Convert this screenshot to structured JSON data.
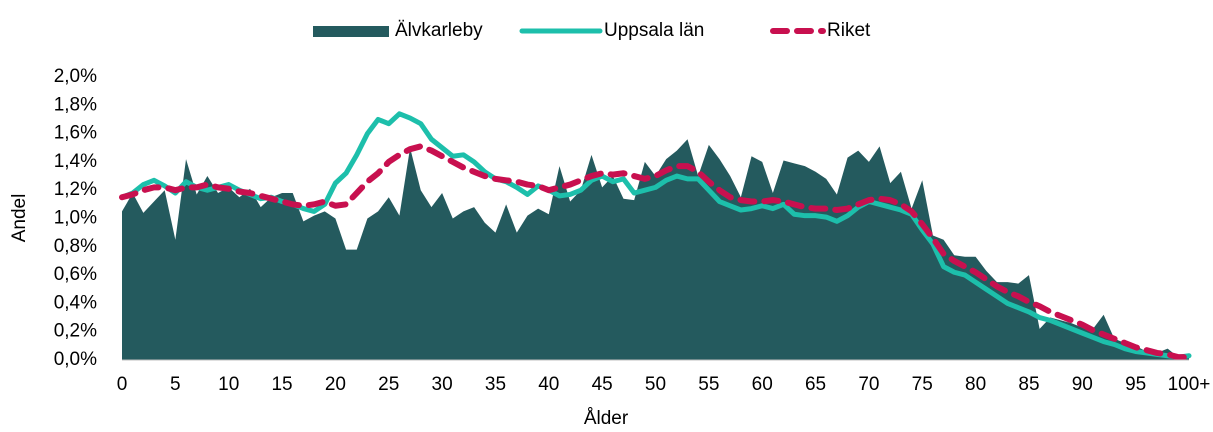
{
  "chart_data": {
    "type": "line",
    "categories": [
      "0",
      null,
      null,
      null,
      null,
      "5",
      null,
      null,
      null,
      null,
      "10",
      null,
      null,
      null,
      null,
      "15",
      null,
      null,
      null,
      null,
      "20",
      null,
      null,
      null,
      null,
      "25",
      null,
      null,
      null,
      null,
      "30",
      null,
      null,
      null,
      null,
      "35",
      null,
      null,
      null,
      null,
      "40",
      null,
      null,
      null,
      null,
      "45",
      null,
      null,
      null,
      null,
      "50",
      null,
      null,
      null,
      null,
      "55",
      null,
      null,
      null,
      null,
      "60",
      null,
      null,
      null,
      null,
      "65",
      null,
      null,
      null,
      null,
      "70",
      null,
      null,
      null,
      null,
      "75",
      null,
      null,
      null,
      null,
      "80",
      null,
      null,
      null,
      null,
      "85",
      null,
      null,
      null,
      null,
      "90",
      null,
      null,
      null,
      null,
      "95",
      null,
      null,
      null,
      null,
      "100+"
    ],
    "series": [
      {
        "name": "Älvkarleby",
        "type": "area",
        "color": "#245a5e",
        "values": [
          1.05,
          1.18,
          1.04,
          1.12,
          1.2,
          0.85,
          1.42,
          1.17,
          1.3,
          1.18,
          1.22,
          1.15,
          1.21,
          1.08,
          1.15,
          1.18,
          1.18,
          0.98,
          1.02,
          1.05,
          1.0,
          0.78,
          0.78,
          1.0,
          1.05,
          1.15,
          1.02,
          1.5,
          1.2,
          1.08,
          1.18,
          1.0,
          1.05,
          1.08,
          0.97,
          0.9,
          1.1,
          0.9,
          1.02,
          1.07,
          1.03,
          1.37,
          1.12,
          1.2,
          1.45,
          1.22,
          1.3,
          1.14,
          1.13,
          1.4,
          1.3,
          1.42,
          1.48,
          1.56,
          1.3,
          1.52,
          1.42,
          1.3,
          1.15,
          1.44,
          1.4,
          1.18,
          1.41,
          1.39,
          1.37,
          1.33,
          1.28,
          1.17,
          1.43,
          1.48,
          1.4,
          1.51,
          1.25,
          1.33,
          1.07,
          1.27,
          0.88,
          0.85,
          0.74,
          0.73,
          0.73,
          0.63,
          0.55,
          0.55,
          0.54,
          0.6,
          0.22,
          0.3,
          0.28,
          0.26,
          0.23,
          0.22,
          0.32,
          0.15,
          0.12,
          0.1,
          0.06,
          0.05,
          0.08,
          0.02,
          0.02
        ]
      },
      {
        "name": "Uppsala län",
        "type": "line",
        "color": "#1dbfab",
        "values": [
          1.15,
          1.18,
          1.24,
          1.27,
          1.23,
          1.18,
          1.26,
          1.22,
          1.2,
          1.22,
          1.24,
          1.2,
          1.17,
          1.14,
          1.15,
          1.12,
          1.1,
          1.07,
          1.05,
          1.1,
          1.25,
          1.32,
          1.45,
          1.6,
          1.7,
          1.67,
          1.74,
          1.71,
          1.67,
          1.56,
          1.5,
          1.44,
          1.45,
          1.4,
          1.33,
          1.28,
          1.26,
          1.22,
          1.17,
          1.23,
          1.2,
          1.16,
          1.17,
          1.2,
          1.27,
          1.3,
          1.26,
          1.28,
          1.18,
          1.2,
          1.22,
          1.27,
          1.3,
          1.28,
          1.28,
          1.2,
          1.12,
          1.09,
          1.06,
          1.07,
          1.09,
          1.07,
          1.1,
          1.03,
          1.02,
          1.02,
          1.01,
          0.98,
          1.02,
          1.08,
          1.12,
          1.1,
          1.08,
          1.06,
          1.03,
          0.92,
          0.82,
          0.66,
          0.62,
          0.6,
          0.55,
          0.5,
          0.45,
          0.4,
          0.37,
          0.34,
          0.3,
          0.28,
          0.25,
          0.22,
          0.19,
          0.16,
          0.13,
          0.11,
          0.08,
          0.06,
          0.05,
          0.04,
          0.03,
          0.02,
          0.03
        ]
      },
      {
        "name": "Riket",
        "type": "line",
        "dashed": true,
        "color": "#c8104f",
        "values": [
          1.15,
          1.17,
          1.2,
          1.22,
          1.22,
          1.2,
          1.22,
          1.22,
          1.24,
          1.22,
          1.21,
          1.19,
          1.18,
          1.16,
          1.14,
          1.12,
          1.1,
          1.09,
          1.1,
          1.12,
          1.09,
          1.1,
          1.18,
          1.26,
          1.32,
          1.4,
          1.45,
          1.49,
          1.51,
          1.48,
          1.44,
          1.4,
          1.36,
          1.33,
          1.3,
          1.28,
          1.27,
          1.26,
          1.24,
          1.23,
          1.2,
          1.22,
          1.24,
          1.27,
          1.3,
          1.32,
          1.31,
          1.32,
          1.3,
          1.28,
          1.3,
          1.34,
          1.37,
          1.37,
          1.33,
          1.26,
          1.2,
          1.15,
          1.13,
          1.12,
          1.12,
          1.13,
          1.12,
          1.1,
          1.08,
          1.07,
          1.07,
          1.06,
          1.07,
          1.1,
          1.13,
          1.14,
          1.13,
          1.1,
          1.05,
          0.96,
          0.86,
          0.75,
          0.7,
          0.66,
          0.62,
          0.57,
          0.52,
          0.48,
          0.45,
          0.41,
          0.38,
          0.34,
          0.31,
          0.28,
          0.25,
          0.21,
          0.18,
          0.15,
          0.12,
          0.09,
          0.07,
          0.05,
          0.04,
          0.02,
          0.02
        ]
      }
    ],
    "ylabel": "Andel",
    "xlabel": "Ålder",
    "ylim": [
      0,
      2
    ],
    "yticks": [
      {
        "value": 0,
        "label": "0,0%"
      },
      {
        "value": 0.2,
        "label": "0,2%"
      },
      {
        "value": 0.4,
        "label": "0,4%"
      },
      {
        "value": 0.6,
        "label": "0,6%"
      },
      {
        "value": 0.8,
        "label": "0,8%"
      },
      {
        "value": 1,
        "label": "1,0%"
      },
      {
        "value": 1.2,
        "label": "1,2%"
      },
      {
        "value": 1.4,
        "label": "1,4%"
      },
      {
        "value": 1.6,
        "label": "1,6%"
      },
      {
        "value": 1.8,
        "label": "1,8%"
      },
      {
        "value": 2,
        "label": "2,0%"
      }
    ],
    "grid": false,
    "legend": "top"
  }
}
